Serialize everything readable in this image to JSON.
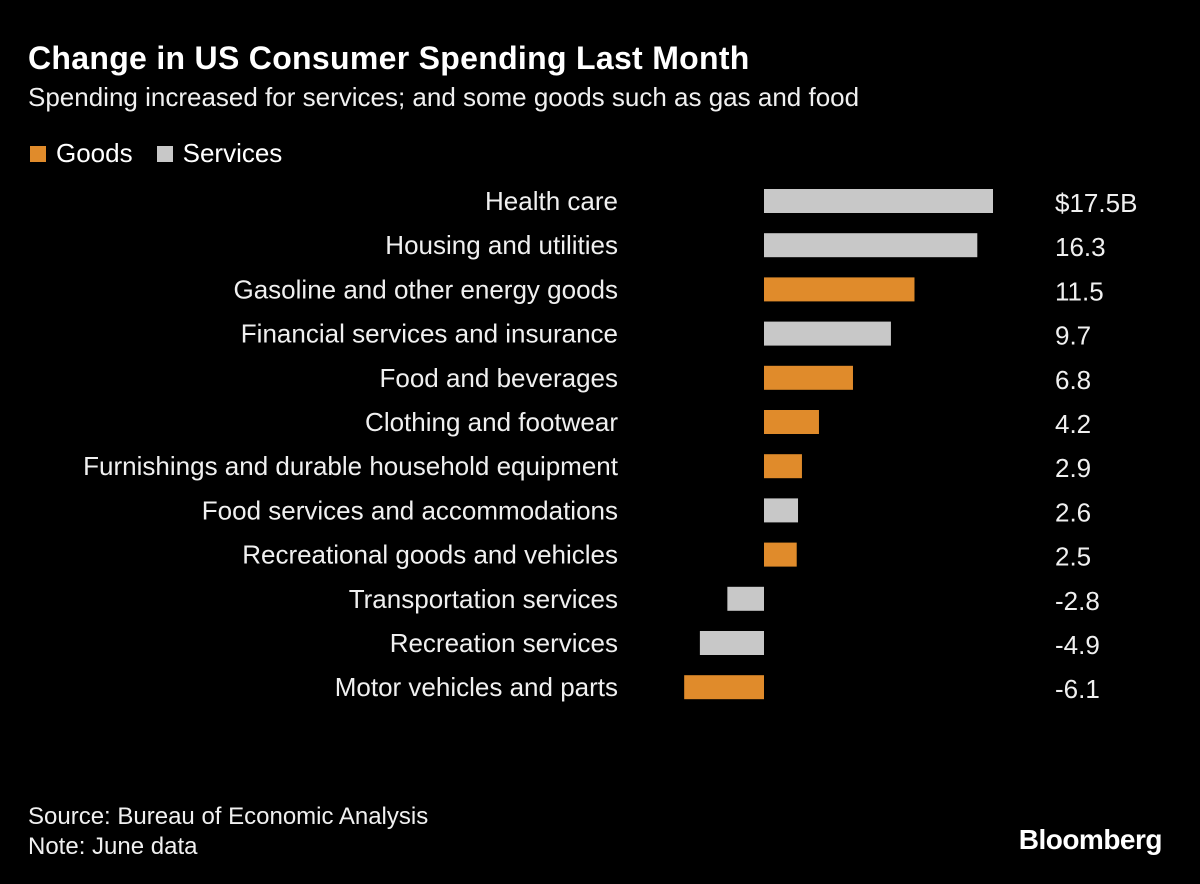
{
  "title": "Change in US Consumer Spending Last Month",
  "subtitle": "Spending increased for services; and some goods such as gas and food",
  "legend": [
    {
      "label": "Goods",
      "color": "#e08b2b"
    },
    {
      "label": "Services",
      "color": "#c8c8c8"
    }
  ],
  "chart_data": {
    "type": "bar",
    "orientation": "horizontal",
    "title": "Change in US Consumer Spending Last Month",
    "subtitle": "Spending increased for services; and some goods such as gas and food",
    "unit_prefix": "$",
    "unit_suffix": "B",
    "categories": [
      "Health care",
      "Housing and utilities",
      "Gasoline and other energy goods",
      "Financial services and insurance",
      "Food and beverages",
      "Clothing and footwear",
      "Furnishings and durable household equipment",
      "Food services and accommodations",
      "Recreational goods and vehicles",
      "Transportation services",
      "Recreation services",
      "Motor vehicles and parts"
    ],
    "values": [
      17.5,
      16.3,
      11.5,
      9.7,
      6.8,
      4.2,
      2.9,
      2.6,
      2.5,
      -2.8,
      -4.9,
      -6.1
    ],
    "value_labels": [
      "$17.5B",
      "16.3",
      "11.5",
      "9.7",
      "6.8",
      "4.2",
      "2.9",
      "2.6",
      "2.5",
      "-2.8",
      "-4.9",
      "-6.1"
    ],
    "series_type": [
      "Services",
      "Services",
      "Goods",
      "Services",
      "Goods",
      "Goods",
      "Goods",
      "Services",
      "Goods",
      "Services",
      "Services",
      "Goods"
    ],
    "legend_position": "top-left",
    "grid": false
  },
  "source": "Source: Bureau of Economic Analysis",
  "note": "Note: June data",
  "logo": "Bloomberg"
}
